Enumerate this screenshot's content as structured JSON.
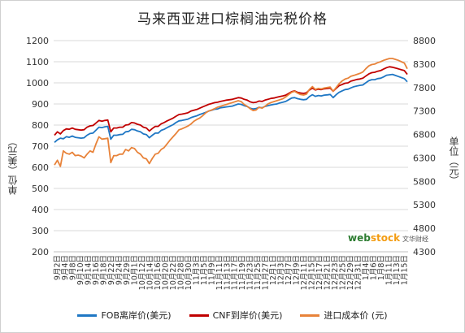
{
  "chart_data": {
    "type": "line",
    "title": "马来西亚进口棕榈油完税价格",
    "ylabel_left": "单位（美元）",
    "ylabel_right": "单位（元）",
    "ylim_left": [
      200,
      1200
    ],
    "yticks_left": [
      200,
      300,
      400,
      500,
      600,
      700,
      800,
      900,
      1000,
      1100,
      1200
    ],
    "ylim_right": [
      4300,
      8800
    ],
    "yticks_right": [
      4300,
      4800,
      5300,
      5800,
      6300,
      6800,
      7300,
      7800,
      8300,
      8800
    ],
    "x_tick_labels": [
      "9月2日",
      "9月4日",
      "9月8日",
      "9月10日",
      "9月14日",
      "9月16日",
      "9月18日",
      "9月22日",
      "9月24日",
      "9月29日",
      "10月1日",
      "10月12日",
      "10月14日",
      "10月16日",
      "10月20日",
      "10月22日",
      "10月28日",
      "10月30日",
      "11月3日",
      "11月5日",
      "11月9日",
      "11月11日",
      "11月13日",
      "11月17日",
      "11月19日",
      "11月23日",
      "11月25日",
      "11月27日",
      "12月1日",
      "12月3日",
      "12月7日",
      "12月9日",
      "12月11日",
      "12月15日",
      "12月17日",
      "12月21日",
      "12月23日",
      "12月25日",
      "12月29日",
      "12月31日",
      "1月4日",
      "1月6日",
      "1月8日",
      "1月11日",
      "1月13日",
      "1月15日"
    ],
    "legend_position": "bottom",
    "grid": "horizontal",
    "series": [
      {
        "name": "FOB离岸价(美元)",
        "axis": "left",
        "color": "#1f77c4",
        "values": [
          718,
          730,
          738,
          735,
          745,
          742,
          748,
          742,
          740,
          738,
          740,
          752,
          760,
          762,
          776,
          790,
          788,
          792,
          794,
          733,
          752,
          752,
          755,
          756,
          768,
          770,
          780,
          778,
          772,
          768,
          758,
          755,
          740,
          752,
          762,
          762,
          775,
          780,
          788,
          795,
          802,
          812,
          820,
          822,
          825,
          828,
          835,
          840,
          844,
          850,
          855,
          860,
          866,
          870,
          875,
          876,
          882,
          884,
          886,
          888,
          890,
          895,
          900,
          898,
          892,
          888,
          880,
          876,
          878,
          884,
          882,
          888,
          892,
          895,
          898,
          900,
          905,
          908,
          912,
          920,
          928,
          930,
          925,
          922,
          920,
          922,
          935,
          944,
          936,
          940,
          938,
          942,
          943,
          945,
          930,
          944,
          955,
          962,
          968,
          970,
          976,
          982,
          985,
          988,
          990,
          1000,
          1010,
          1015,
          1015,
          1020,
          1022,
          1028,
          1036,
          1038,
          1040,
          1035,
          1030,
          1025,
          1020,
          1005
        ]
      },
      {
        "name": "CNF到岸价(美元)",
        "axis": "left",
        "color": "#c00000",
        "values": [
          752,
          768,
          758,
          774,
          782,
          780,
          786,
          780,
          778,
          776,
          778,
          790,
          796,
          798,
          810,
          822,
          818,
          822,
          824,
          768,
          786,
          786,
          790,
          790,
          800,
          802,
          812,
          810,
          804,
          800,
          790,
          786,
          772,
          784,
          794,
          794,
          806,
          812,
          820,
          826,
          833,
          842,
          850,
          852,
          855,
          858,
          866,
          870,
          874,
          880,
          886,
          892,
          898,
          902,
          906,
          908,
          912,
          915,
          918,
          920,
          922,
          926,
          930,
          928,
          922,
          918,
          910,
          906,
          908,
          914,
          912,
          918,
          922,
          926,
          928,
          932,
          935,
          938,
          942,
          950,
          958,
          962,
          955,
          952,
          950,
          953,
          966,
          975,
          966,
          970,
          968,
          972,
          973,
          975,
          960,
          974,
          986,
          992,
          998,
          1000,
          1008,
          1012,
          1016,
          1018,
          1022,
          1032,
          1042,
          1048,
          1050,
          1055,
          1058,
          1065,
          1072,
          1076,
          1074,
          1070,
          1066,
          1062,
          1058,
          1040
        ]
      },
      {
        "name": "进口成本价 (元)",
        "axis": "right",
        "color": "#e8833a",
        "values": [
          6150,
          6250,
          6120,
          6450,
          6400,
          6380,
          6420,
          6350,
          6360,
          6340,
          6300,
          6380,
          6450,
          6420,
          6600,
          6750,
          6700,
          6710,
          6720,
          6200,
          6350,
          6350,
          6380,
          6380,
          6480,
          6450,
          6520,
          6500,
          6420,
          6380,
          6300,
          6280,
          6180,
          6290,
          6380,
          6400,
          6480,
          6520,
          6600,
          6680,
          6750,
          6820,
          6900,
          6920,
          6950,
          6980,
          7020,
          7080,
          7120,
          7150,
          7200,
          7260,
          7300,
          7320,
          7350,
          7380,
          7400,
          7420,
          7440,
          7460,
          7480,
          7500,
          7520,
          7500,
          7440,
          7400,
          7350,
          7310,
          7320,
          7380,
          7360,
          7400,
          7450,
          7480,
          7500,
          7520,
          7540,
          7560,
          7600,
          7650,
          7700,
          7720,
          7680,
          7650,
          7640,
          7660,
          7760,
          7820,
          7760,
          7780,
          7770,
          7790,
          7800,
          7810,
          7720,
          7800,
          7880,
          7940,
          7980,
          8000,
          8040,
          8060,
          8080,
          8100,
          8130,
          8200,
          8260,
          8290,
          8300,
          8330,
          8350,
          8380,
          8400,
          8420,
          8420,
          8400,
          8380,
          8350,
          8320,
          8200
        ]
      }
    ],
    "watermark": {
      "part1": "web",
      "part2": "stock",
      "part3": "文华财经"
    }
  }
}
